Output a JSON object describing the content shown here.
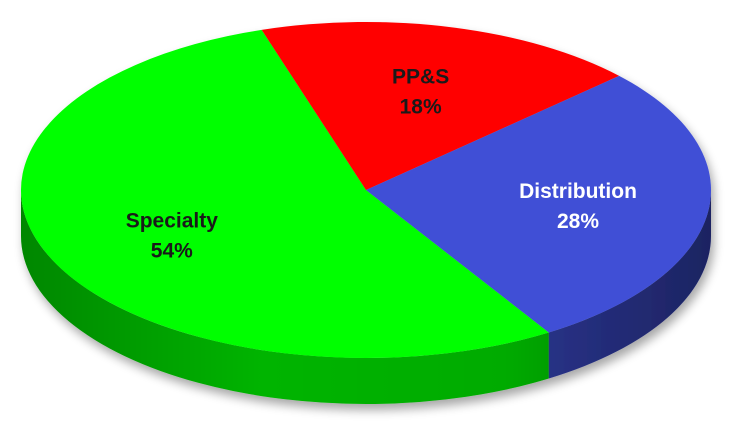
{
  "chart_data": {
    "type": "pie",
    "title": "",
    "slices": [
      {
        "label": "Specialty",
        "value": 54,
        "value_label": "54%",
        "color": "#00ff00",
        "side_color": "#00b400"
      },
      {
        "label": "PP&S",
        "value": 18,
        "value_label": "18%",
        "color": "#ff0000",
        "side_color": "#b40000"
      },
      {
        "label": "Distribution",
        "value": 28,
        "value_label": "28%",
        "color": "#3f4fd6",
        "side_color": "#2c3796"
      }
    ],
    "label_colors": {
      "Specialty": "#1a1a1a",
      "PP&S": "#1a1a1a",
      "Distribution": "#ffffff"
    },
    "style": "3d-tilted",
    "legend": "none"
  }
}
